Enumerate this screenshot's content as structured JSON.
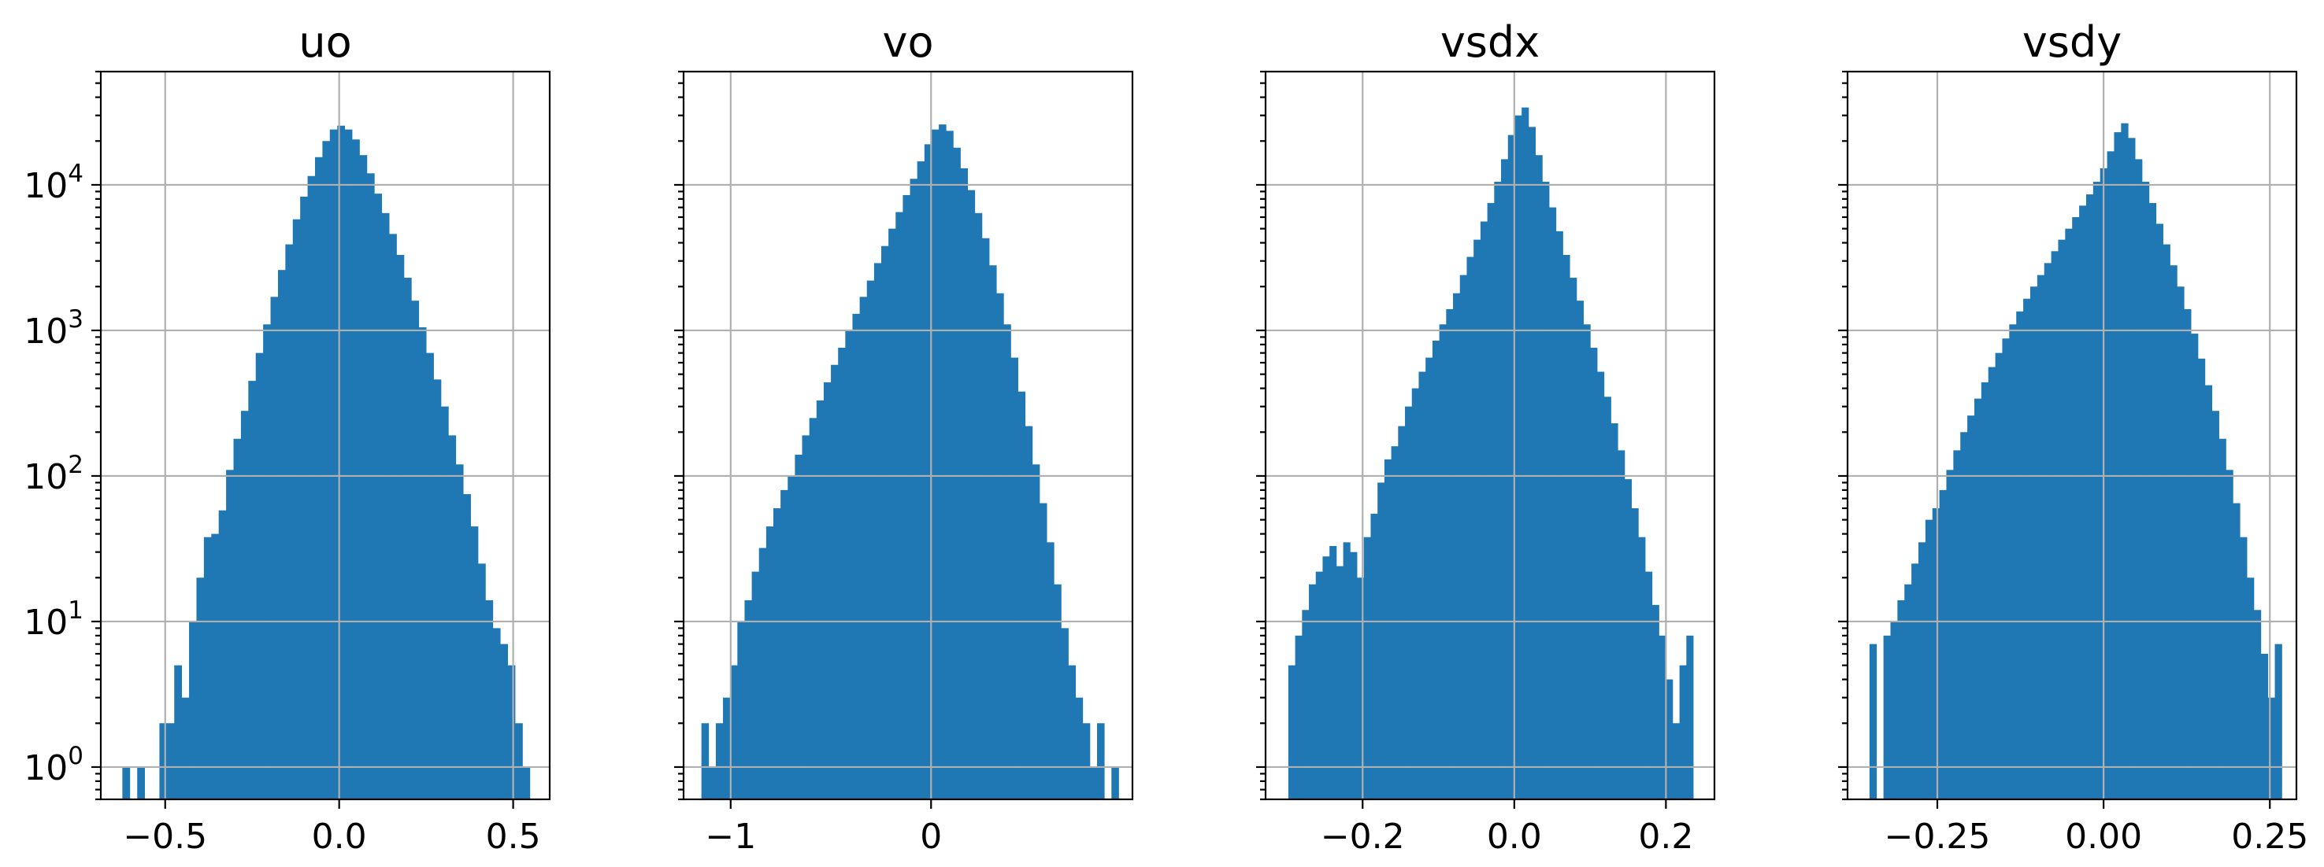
{
  "chart_data": [
    {
      "type": "bar",
      "title": "uo",
      "xlabel": "",
      "ylabel": "",
      "yscale": "log",
      "ylim": [
        0.6,
        60000
      ],
      "xlim": [
        -0.685,
        0.605
      ],
      "grid": true,
      "color": "#1f77b4",
      "xticks": [
        -0.5,
        0.0,
        0.5
      ],
      "xtick_labels": [
        "−0.5",
        "0.0",
        "0.5"
      ],
      "yticks": [
        1,
        10,
        100,
        1000,
        10000
      ],
      "ytick_labels": [
        "10",
        "10",
        "10",
        "10",
        "10"
      ],
      "ytick_exponents": [
        "0",
        "1",
        "2",
        "3",
        "4"
      ],
      "bin_range": [
        -0.623,
        0.548
      ],
      "bin_counts": [
        1,
        0,
        1,
        0,
        0,
        2,
        2,
        5,
        3,
        10,
        20,
        38,
        40,
        58,
        110,
        180,
        280,
        450,
        700,
        1100,
        1700,
        2600,
        3900,
        5800,
        8300,
        11500,
        15500,
        20000,
        24000,
        25500,
        24000,
        20500,
        16000,
        12000,
        8700,
        6400,
        4600,
        3300,
        2300,
        1600,
        1050,
        700,
        460,
        300,
        190,
        120,
        75,
        45,
        25,
        14,
        9,
        7,
        5,
        2,
        1
      ]
    },
    {
      "type": "bar",
      "title": "vo",
      "xlabel": "",
      "ylabel": "",
      "yscale": "log",
      "ylim": [
        0.6,
        60000
      ],
      "xlim": [
        -1.235,
        1.005
      ],
      "grid": true,
      "color": "#1f77b4",
      "xticks": [
        -1,
        0
      ],
      "xtick_labels": [
        "−1",
        "0"
      ],
      "bin_range": [
        -1.146,
        0.936
      ],
      "bin_counts": [
        2,
        1,
        2,
        3,
        5,
        10,
        14,
        22,
        32,
        45,
        60,
        80,
        100,
        140,
        190,
        250,
        330,
        440,
        580,
        760,
        1000,
        1300,
        1700,
        2200,
        2900,
        3800,
        5000,
        6500,
        8500,
        11000,
        14500,
        19000,
        24000,
        26000,
        23500,
        18000,
        13000,
        9200,
        6400,
        4300,
        2800,
        1800,
        1100,
        650,
        380,
        220,
        120,
        65,
        35,
        18,
        9,
        5,
        3,
        2,
        1,
        2,
        0,
        1
      ]
    },
    {
      "type": "bar",
      "title": "vsdx",
      "xlabel": "",
      "ylabel": "",
      "yscale": "log",
      "ylim": [
        0.6,
        60000
      ],
      "xlim": [
        -0.328,
        0.264
      ],
      "grid": true,
      "color": "#1f77b4",
      "xticks": [
        -0.2,
        0.0,
        0.2
      ],
      "xtick_labels": [
        "−0.2",
        "0.0",
        "0.2"
      ],
      "bin_range": [
        -0.298,
        0.236
      ],
      "bin_counts": [
        5,
        8,
        12,
        18,
        22,
        28,
        33,
        24,
        35,
        30,
        20,
        38,
        55,
        90,
        130,
        160,
        220,
        300,
        400,
        520,
        650,
        850,
        1100,
        1400,
        1800,
        2400,
        3200,
        4200,
        5600,
        7500,
        10500,
        15000,
        22000,
        30000,
        34000,
        25000,
        16000,
        10500,
        7000,
        4800,
        3300,
        2300,
        1600,
        1100,
        760,
        520,
        350,
        230,
        150,
        95,
        60,
        38,
        22,
        13,
        8,
        4,
        2,
        5,
        8
      ]
    },
    {
      "type": "bar",
      "title": "vsdy",
      "xlabel": "",
      "ylabel": "",
      "yscale": "log",
      "ylim": [
        0.6,
        60000
      ],
      "xlim": [
        -0.385,
        0.29
      ],
      "grid": true,
      "color": "#1f77b4",
      "xticks": [
        -0.25,
        0.0,
        0.25
      ],
      "xtick_labels": [
        "−0.25",
        "0.00",
        "0.25"
      ],
      "bin_range": [
        -0.352,
        0.268
      ],
      "bin_counts": [
        7,
        0,
        8,
        10,
        14,
        18,
        25,
        35,
        50,
        60,
        80,
        110,
        150,
        200,
        260,
        340,
        440,
        560,
        700,
        880,
        1100,
        1350,
        1650,
        2000,
        2400,
        2900,
        3500,
        4200,
        5000,
        6000,
        7200,
        8600,
        10500,
        13000,
        17000,
        23000,
        26500,
        21000,
        15000,
        10500,
        7500,
        5400,
        3900,
        2800,
        2000,
        1400,
        950,
        640,
        420,
        280,
        180,
        110,
        65,
        38,
        20,
        12,
        6,
        3,
        7
      ]
    }
  ]
}
